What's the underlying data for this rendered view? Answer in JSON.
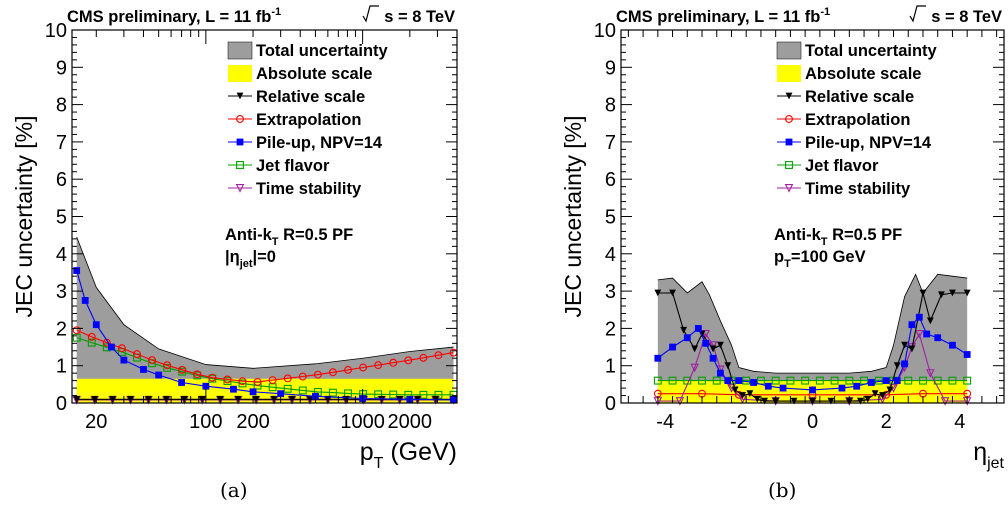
{
  "chart_data": [
    {
      "type": "area",
      "panel": "(a)",
      "header_left": "CMS preliminary, L = 11 fb",
      "header_left_sup": "-1",
      "header_right": "s = 8 TeV",
      "ylabel": "JEC uncertainty [%]",
      "xlabel": "p",
      "xlabel_sub": "T",
      "xlabel_unit": " (GeV)",
      "xscale": "log",
      "xlim": [
        14,
        4000
      ],
      "ylim": [
        0,
        10
      ],
      "yticks": [
        "0",
        "1",
        "2",
        "3",
        "4",
        "5",
        "6",
        "7",
        "8",
        "9",
        "10"
      ],
      "xticks": [
        {
          "v": 20,
          "label": "20"
        },
        {
          "v": 100,
          "label": "100"
        },
        {
          "v": 200,
          "label": "200"
        },
        {
          "v": 1000,
          "label": "1000"
        },
        {
          "v": 2000,
          "label": "2000"
        }
      ],
      "annotation_lines": [
        {
          "main": "Anti-k",
          "sub": "T",
          "rest": " R=0.5 PF"
        },
        {
          "main": "|η",
          "sub": "jet",
          "rest": "|=0"
        }
      ],
      "legend": [
        "Total uncertainty",
        "Absolute scale",
        "Relative scale",
        "Extrapolation",
        "Pile-up, NPV=14",
        "Jet flavor",
        "Time stability"
      ],
      "series": [
        {
          "name": "Total uncertainty",
          "x": [
            15,
            20,
            30,
            50,
            100,
            200,
            500,
            1000,
            2000,
            3800
          ],
          "values": [
            4.45,
            3.1,
            2.1,
            1.45,
            1.03,
            0.93,
            1.05,
            1.2,
            1.38,
            1.5
          ]
        },
        {
          "name": "Absolute scale",
          "x": [
            15,
            3800
          ],
          "values": [
            0.65,
            0.65
          ]
        },
        {
          "name": "Relative scale",
          "x": [
            15,
            3800
          ],
          "values": [
            0.1,
            0.1
          ]
        },
        {
          "name": "Extrapolation",
          "x": [
            15,
            20,
            30,
            50,
            100,
            200,
            500,
            1000,
            2000,
            3800
          ],
          "values": [
            1.95,
            1.72,
            1.45,
            1.08,
            0.7,
            0.55,
            0.75,
            0.95,
            1.15,
            1.35
          ]
        },
        {
          "name": "Pile-up, NPV=14",
          "x": [
            15,
            17,
            20,
            25,
            30,
            40,
            50,
            70,
            100,
            150,
            200,
            300,
            500,
            1000,
            2000,
            3800
          ],
          "values": [
            3.55,
            2.75,
            2.1,
            1.5,
            1.15,
            0.9,
            0.75,
            0.55,
            0.45,
            0.37,
            0.3,
            0.25,
            0.18,
            0.12,
            0.1,
            0.08
          ]
        },
        {
          "name": "Jet flavor",
          "x": [
            15,
            20,
            30,
            50,
            100,
            200,
            500,
            1000,
            2000,
            3800
          ],
          "values": [
            1.75,
            1.58,
            1.35,
            1.0,
            0.68,
            0.48,
            0.3,
            0.24,
            0.22,
            0.22
          ]
        },
        {
          "name": "Time stability",
          "x": [
            15,
            3800
          ],
          "values": [
            0.08,
            0.08
          ]
        }
      ]
    },
    {
      "type": "area",
      "panel": "(b)",
      "header_left": "CMS preliminary, L = 11 fb",
      "header_left_sup": "-1",
      "header_right": "s = 8 TeV",
      "ylabel": "JEC uncertainty [%]",
      "xlabel": "η",
      "xlabel_sub": "jet",
      "xlabel_unit": "",
      "xscale": "linear",
      "xlim": [
        -5.2,
        5.2
      ],
      "ylim": [
        0,
        10
      ],
      "yticks": [
        "0",
        "1",
        "2",
        "3",
        "4",
        "5",
        "6",
        "7",
        "8",
        "9",
        "10"
      ],
      "xticks": [
        {
          "v": -4,
          "label": "-4"
        },
        {
          "v": -2,
          "label": "-2"
        },
        {
          "v": 0,
          "label": "0"
        },
        {
          "v": 2,
          "label": "2"
        },
        {
          "v": 4,
          "label": "4"
        }
      ],
      "annotation_lines": [
        {
          "main": "Anti-k",
          "sub": "T",
          "rest": " R=0.5 PF"
        },
        {
          "main": "p",
          "sub": "T",
          "rest": "=100 GeV"
        }
      ],
      "legend": [
        "Total uncertainty",
        "Absolute scale",
        "Relative scale",
        "Extrapolation",
        "Pile-up, NPV=14",
        "Jet flavor",
        "Time stability"
      ],
      "series": [
        {
          "name": "Total uncertainty",
          "x": [
            -4.2,
            -3.8,
            -3.4,
            -3.0,
            -2.8,
            -2.5,
            -2.2,
            -2.0,
            -1.6,
            -1.0,
            0,
            1.0,
            1.6,
            2.0,
            2.2,
            2.5,
            2.8,
            3.0,
            3.4,
            3.8,
            4.2
          ],
          "values": [
            3.3,
            3.35,
            2.95,
            3.25,
            2.9,
            2.2,
            1.55,
            0.95,
            0.85,
            0.8,
            0.8,
            0.8,
            0.85,
            0.95,
            1.55,
            2.85,
            3.45,
            2.95,
            3.45,
            3.4,
            3.35
          ]
        },
        {
          "name": "Absolute scale",
          "x": [
            -4.2,
            4.2
          ],
          "values": [
            0.6,
            0.6
          ]
        },
        {
          "name": "Relative scale",
          "x": [
            -4.2,
            -3.8,
            -3.5,
            -3.2,
            -3.0,
            -2.7,
            -2.5,
            -2.3,
            -2.1,
            -1.9,
            -1.7,
            -1.5,
            -1.3,
            -1.0,
            -0.5,
            0,
            0.5,
            1.0,
            1.3,
            1.5,
            1.7,
            1.9,
            2.1,
            2.3,
            2.5,
            2.7,
            3.0,
            3.2,
            3.5,
            3.8,
            4.2
          ],
          "values": [
            2.95,
            2.95,
            1.95,
            1.45,
            1.85,
            1.45,
            1.55,
            1.0,
            0.35,
            0.2,
            0.25,
            0.1,
            0.05,
            0.05,
            0.05,
            0.05,
            0.05,
            0.05,
            0.05,
            0.1,
            0.25,
            0.2,
            0.35,
            1.0,
            1.55,
            1.45,
            2.95,
            2.2,
            2.9,
            2.95,
            2.95
          ]
        },
        {
          "name": "Extrapolation",
          "x": [
            -4.2,
            -3.0,
            -2.0,
            0,
            2.0,
            3.0,
            4.2
          ],
          "values": [
            0.25,
            0.25,
            0.22,
            0.22,
            0.22,
            0.25,
            0.25
          ]
        },
        {
          "name": "Pile-up, NPV=14",
          "x": [
            -4.2,
            -3.8,
            -3.4,
            -3.1,
            -2.9,
            -2.7,
            -2.5,
            -2.3,
            -2.0,
            -1.6,
            -1.2,
            -0.8,
            0,
            0.8,
            1.2,
            1.6,
            2.0,
            2.3,
            2.5,
            2.7,
            2.9,
            3.1,
            3.4,
            3.8,
            4.2
          ],
          "values": [
            1.2,
            1.5,
            1.75,
            2.0,
            1.6,
            1.2,
            0.8,
            0.6,
            0.6,
            0.55,
            0.45,
            0.4,
            0.35,
            0.4,
            0.45,
            0.55,
            0.6,
            0.6,
            1.05,
            2.1,
            2.3,
            1.85,
            1.75,
            1.55,
            1.3
          ]
        },
        {
          "name": "Jet flavor",
          "x": [
            -4.2,
            4.2
          ],
          "values": [
            0.6,
            0.6
          ]
        },
        {
          "name": "Time stability",
          "x": [
            -4.2,
            -3.6,
            -3.2,
            -2.9,
            -2.7,
            -2.5,
            -2.2,
            -1.9,
            -1.0,
            0,
            1.0,
            1.9,
            2.2,
            2.5,
            2.7,
            2.9,
            3.2,
            3.6,
            4.2
          ],
          "values": [
            0.05,
            0.05,
            0.95,
            1.85,
            1.55,
            0.9,
            0.4,
            0.1,
            0.05,
            0.05,
            0.05,
            0.1,
            0.4,
            0.95,
            1.5,
            1.85,
            0.8,
            0.05,
            0.05
          ]
        }
      ]
    }
  ],
  "figure_labels": {
    "a": "(a)",
    "b": "(b)"
  }
}
